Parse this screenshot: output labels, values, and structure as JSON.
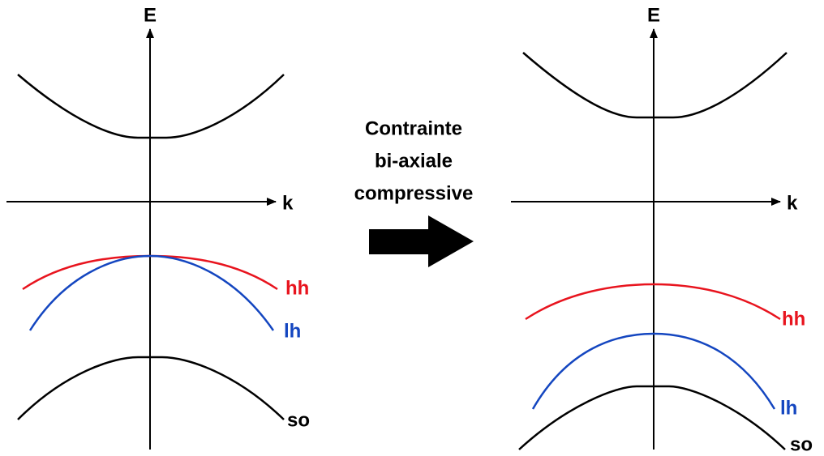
{
  "left": {
    "axis_e": "E",
    "axis_k": "k",
    "bands": {
      "hh": "hh",
      "lh": "lh",
      "so": "so"
    }
  },
  "arrow": {
    "lines": [
      "Contrainte",
      "bi-axiale",
      "compressive"
    ]
  },
  "right": {
    "axis_e": "E",
    "axis_k": "k",
    "bands": {
      "hh": "hh",
      "lh": "lh",
      "so": "so"
    }
  }
}
